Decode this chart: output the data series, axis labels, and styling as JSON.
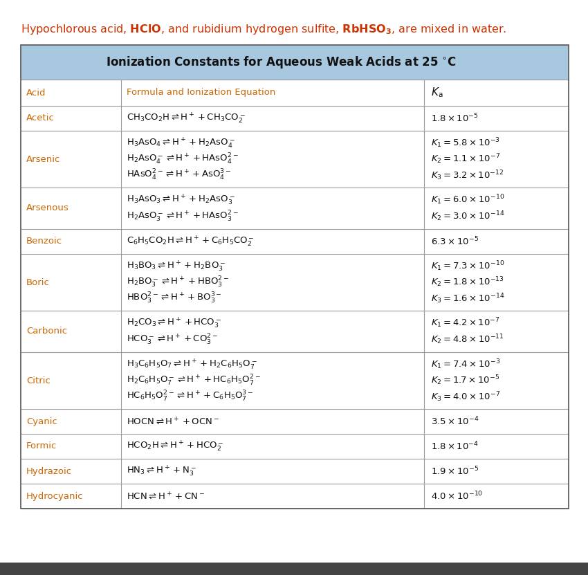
{
  "title_text": "Ionization Constants for Aqueous Weak Acids at 25 °C",
  "header_bg": "#a8c8e0",
  "acid_color": "#cc6600",
  "border_color": "#999999",
  "dark_border": "#555555",
  "bottom_bar_color": "#444444",
  "white": "#ffffff",
  "black": "#111111",
  "intro_color": "#cc3300",
  "col_header_acid_color": "#cc6600",
  "rows": [
    {
      "acid": "Acetic",
      "formulas": [
        "$\\mathrm{CH_3CO_2H} \\rightleftharpoons \\mathrm{H^+} + \\mathrm{CH_3CO_2^-}$"
      ],
      "ka": [
        "$1.8 \\times 10^{-5}$"
      ]
    },
    {
      "acid": "Arsenic",
      "formulas": [
        "$\\mathrm{H_3AsO_4} \\rightleftharpoons \\mathrm{H^+} + \\mathrm{H_2AsO_4^-}$",
        "$\\mathrm{H_2AsO_4^-} \\rightleftharpoons \\mathrm{H^+} + \\mathrm{HAsO_4^{2-}}$",
        "$\\mathrm{HAsO_4^{2-}} \\rightleftharpoons \\mathrm{H^+} + \\mathrm{AsO_4^{3-}}$"
      ],
      "ka": [
        "$K_1 = 5.8 \\times 10^{-3}$",
        "$K_2 = 1.1 \\times 10^{-7}$",
        "$K_3 = 3.2 \\times 10^{-12}$"
      ]
    },
    {
      "acid": "Arsenous",
      "formulas": [
        "$\\mathrm{H_3AsO_3} \\rightleftharpoons \\mathrm{H^+} + \\mathrm{H_2AsO_3^-}$",
        "$\\mathrm{H_2AsO_3^-} \\rightleftharpoons \\mathrm{H^+} + \\mathrm{HAsO_3^{2-}}$"
      ],
      "ka": [
        "$K_1 = 6.0 \\times 10^{-10}$",
        "$K_2 = 3.0 \\times 10^{-14}$"
      ]
    },
    {
      "acid": "Benzoic",
      "formulas": [
        "$\\mathrm{C_6H_5CO_2H} \\rightleftharpoons \\mathrm{H^+} + \\mathrm{C_6H_5CO_2^-}$"
      ],
      "ka": [
        "$6.3 \\times 10^{-5}$"
      ]
    },
    {
      "acid": "Boric",
      "formulas": [
        "$\\mathrm{H_3BO_3} \\rightleftharpoons \\mathrm{H^+} + \\mathrm{H_2BO_3^-}$",
        "$\\mathrm{H_2BO_3^-} \\rightleftharpoons \\mathrm{H^+} + \\mathrm{HBO_3^{2-}}$",
        "$\\mathrm{HBO_3^{2-}} \\rightleftharpoons \\mathrm{H^+} + \\mathrm{BO_3^{3-}}$"
      ],
      "ka": [
        "$K_1 = 7.3 \\times 10^{-10}$",
        "$K_2 = 1.8 \\times 10^{-13}$",
        "$K_3 = 1.6 \\times 10^{-14}$"
      ]
    },
    {
      "acid": "Carbonic",
      "formulas": [
        "$\\mathrm{H_2CO_3} \\rightleftharpoons \\mathrm{H^+} + \\mathrm{HCO_3^-}$",
        "$\\mathrm{HCO_3^-} \\rightleftharpoons \\mathrm{H^+} + \\mathrm{CO_3^{2-}}$"
      ],
      "ka": [
        "$K_1 = 4.2 \\times 10^{-7}$",
        "$K_2 = 4.8 \\times 10^{-11}$"
      ]
    },
    {
      "acid": "Citric",
      "formulas": [
        "$\\mathrm{H_3C_6H_5O_7} \\rightleftharpoons \\mathrm{H^+} + \\mathrm{H_2C_6H_5O_7^-}$",
        "$\\mathrm{H_2C_6H_5O_7^-} \\rightleftharpoons \\mathrm{H^+} + \\mathrm{HC_6H_5O_7^{2-}}$",
        "$\\mathrm{HC_6H_5O_7^{2-}} \\rightleftharpoons \\mathrm{H^+} + \\mathrm{C_6H_5O_7^{3-}}$"
      ],
      "ka": [
        "$K_1 = 7.4 \\times 10^{-3}$",
        "$K_2 = 1.7 \\times 10^{-5}$",
        "$K_3 = 4.0 \\times 10^{-7}$"
      ]
    },
    {
      "acid": "Cyanic",
      "formulas": [
        "$\\mathrm{HOCN} \\rightleftharpoons \\mathrm{H^+} + \\mathrm{OCN^-}$"
      ],
      "ka": [
        "$3.5 \\times 10^{-4}$"
      ]
    },
    {
      "acid": "Formic",
      "formulas": [
        "$\\mathrm{HCO_2H} \\rightleftharpoons \\mathrm{H^+} + \\mathrm{HCO_2^-}$"
      ],
      "ka": [
        "$1.8 \\times 10^{-4}$"
      ]
    },
    {
      "acid": "Hydrazoic",
      "formulas": [
        "$\\mathrm{HN_3} \\rightleftharpoons \\mathrm{H^+} + \\mathrm{N_3^-}$"
      ],
      "ka": [
        "$1.9 \\times 10^{-5}$"
      ]
    },
    {
      "acid": "Hydrocyanic",
      "formulas": [
        "$\\mathrm{HCN} \\rightleftharpoons \\mathrm{H^+} + \\mathrm{CN^-}$"
      ],
      "ka": [
        "$4.0 \\times 10^{-10}$"
      ]
    }
  ]
}
